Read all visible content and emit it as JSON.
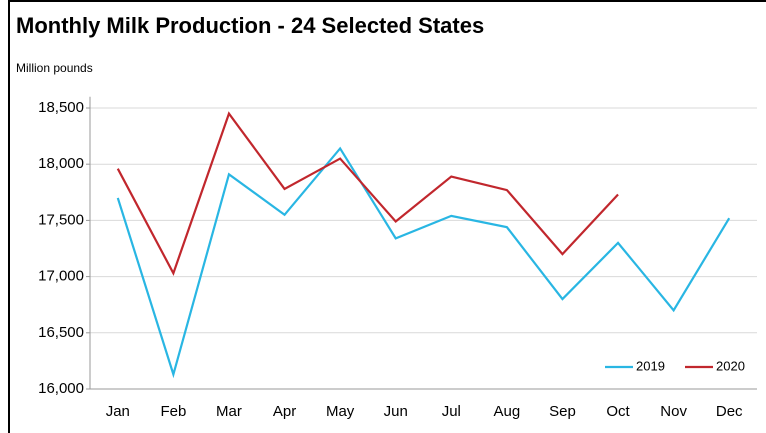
{
  "chart_data": {
    "type": "line",
    "title": "Monthly Milk Production - 24 Selected States",
    "subtitle": "Million pounds",
    "categories": [
      "Jan",
      "Feb",
      "Mar",
      "Apr",
      "May",
      "Jun",
      "Jul",
      "Aug",
      "Sep",
      "Oct",
      "Nov",
      "Dec"
    ],
    "series": [
      {
        "name": "2019",
        "color": "#29b6e3",
        "values": [
          17700,
          16130,
          17910,
          17550,
          18140,
          17340,
          17540,
          17440,
          16800,
          17300,
          16700,
          17520
        ]
      },
      {
        "name": "2020",
        "color": "#c1272d",
        "values": [
          17960,
          17030,
          18450,
          17780,
          18050,
          17490,
          17890,
          17770,
          17200,
          17730,
          null,
          null
        ]
      }
    ],
    "ylim": [
      16000,
      18600
    ],
    "yticks": [
      {
        "value": 16000,
        "label": "16,000"
      },
      {
        "value": 16500,
        "label": "16,500"
      },
      {
        "value": 17000,
        "label": "17,000"
      },
      {
        "value": 17500,
        "label": "17,500"
      },
      {
        "value": 18000,
        "label": "18,000"
      },
      {
        "value": 18500,
        "label": "18,500"
      }
    ],
    "grid": true,
    "legend": "lower right"
  }
}
